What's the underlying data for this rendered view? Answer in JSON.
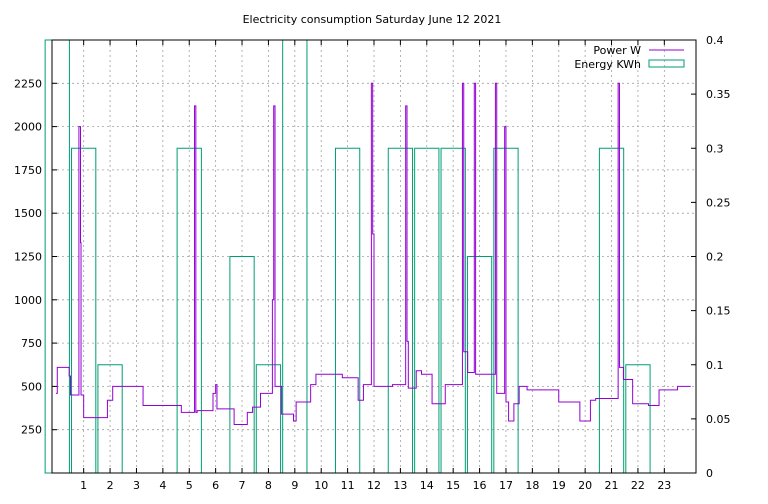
{
  "chart_data": {
    "type": "line",
    "title": "Electricity consumption Saturday June 12 2021",
    "x_axis": {
      "range": [
        -0.2,
        24.2
      ],
      "ticks": [
        1,
        2,
        3,
        4,
        5,
        6,
        7,
        8,
        9,
        10,
        11,
        12,
        13,
        14,
        15,
        16,
        17,
        18,
        19,
        20,
        21,
        22,
        23
      ]
    },
    "y_left": {
      "range": [
        0,
        2500
      ],
      "ticks": [
        250,
        500,
        750,
        1000,
        1250,
        1500,
        1750,
        2000,
        2250
      ]
    },
    "y_right": {
      "range": [
        0,
        0.4
      ],
      "ticks": [
        0,
        0.05,
        0.1,
        0.15,
        0.2,
        0.25,
        0.3,
        0.35,
        0.4
      ],
      "tick_labels": [
        "0",
        "0.05",
        "0.1",
        "0.15",
        "0.2",
        "0.25",
        "0.3",
        "0.35",
        "0.4"
      ]
    },
    "grid": true,
    "legend_position": "top-right",
    "series": [
      {
        "name": "Power W",
        "axis": "left",
        "color": "#9400d3",
        "style": "steps",
        "points": [
          [
            -0.05,
            460
          ],
          [
            0.0,
            610
          ],
          [
            0.45,
            560
          ],
          [
            0.5,
            450
          ],
          [
            0.75,
            450
          ],
          [
            0.82,
            2000
          ],
          [
            0.88,
            1330
          ],
          [
            0.9,
            450
          ],
          [
            1.0,
            320
          ],
          [
            1.9,
            420
          ],
          [
            2.1,
            500
          ],
          [
            3.25,
            390
          ],
          [
            4.7,
            350
          ],
          [
            5.2,
            2120
          ],
          [
            5.25,
            350
          ],
          [
            5.3,
            360
          ],
          [
            5.9,
            460
          ],
          [
            6.0,
            510
          ],
          [
            6.05,
            370
          ],
          [
            6.7,
            280
          ],
          [
            7.2,
            350
          ],
          [
            7.4,
            380
          ],
          [
            7.7,
            460
          ],
          [
            8.15,
            1000
          ],
          [
            8.2,
            2120
          ],
          [
            8.25,
            500
          ],
          [
            8.5,
            340
          ],
          [
            8.95,
            300
          ],
          [
            9.05,
            410
          ],
          [
            9.6,
            510
          ],
          [
            9.8,
            570
          ],
          [
            10.8,
            550
          ],
          [
            11.4,
            420
          ],
          [
            11.6,
            510
          ],
          [
            11.9,
            2250
          ],
          [
            11.95,
            1380
          ],
          [
            12.0,
            500
          ],
          [
            12.7,
            510
          ],
          [
            13.2,
            2120
          ],
          [
            13.25,
            760
          ],
          [
            13.3,
            490
          ],
          [
            13.6,
            590
          ],
          [
            13.8,
            570
          ],
          [
            14.2,
            400
          ],
          [
            14.7,
            510
          ],
          [
            15.35,
            2250
          ],
          [
            15.4,
            700
          ],
          [
            15.55,
            580
          ],
          [
            15.8,
            2250
          ],
          [
            15.85,
            570
          ],
          [
            16.6,
            2250
          ],
          [
            16.65,
            460
          ],
          [
            16.95,
            2000
          ],
          [
            17.0,
            410
          ],
          [
            17.1,
            300
          ],
          [
            17.3,
            400
          ],
          [
            17.5,
            500
          ],
          [
            17.8,
            480
          ],
          [
            19.0,
            410
          ],
          [
            19.8,
            300
          ],
          [
            20.2,
            420
          ],
          [
            20.4,
            430
          ],
          [
            21.25,
            2250
          ],
          [
            21.3,
            610
          ],
          [
            21.45,
            540
          ],
          [
            21.8,
            400
          ],
          [
            22.4,
            390
          ],
          [
            22.8,
            480
          ],
          [
            23.5,
            500
          ],
          [
            24.0,
            500
          ]
        ]
      },
      {
        "name": "Energy KWh",
        "axis": "right",
        "color": "#009e73",
        "style": "boxes",
        "bars": [
          [
            0,
            0.4
          ],
          [
            1,
            0.3
          ],
          [
            2,
            0.1
          ],
          [
            5,
            0.3
          ],
          [
            7,
            0.2
          ],
          [
            8,
            0.1
          ],
          [
            9,
            0.4
          ],
          [
            11,
            0.3
          ],
          [
            13,
            0.3
          ],
          [
            14,
            0.3
          ],
          [
            15,
            0.3
          ],
          [
            16,
            0.2
          ],
          [
            17,
            0.3
          ],
          [
            21,
            0.3
          ],
          [
            22,
            0.1
          ]
        ]
      }
    ]
  }
}
